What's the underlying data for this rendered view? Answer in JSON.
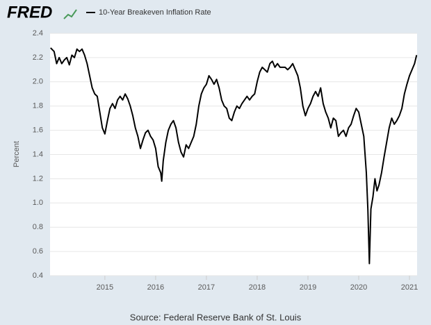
{
  "chart_data": {
    "type": "line",
    "logo": "FRED",
    "title": "10-Year Breakeven Inflation Rate",
    "y_label": "Percent",
    "source": "Source: Federal Reserve Bank of St. Louis",
    "grid": true,
    "xlim": [
      2013.92,
      2021.15
    ],
    "xticks": [
      2015,
      2016,
      2017,
      2018,
      2019,
      2020,
      2021
    ],
    "ylim": [
      0.4,
      2.4
    ],
    "yticks": [
      0.4,
      0.6,
      0.8,
      {
        "value": 1,
        "label": "1.0"
      },
      1.2,
      1.4,
      1.6,
      1.8,
      {
        "value": 2,
        "label": "2.0"
      },
      2.2,
      2.4
    ],
    "x": [
      2013.93,
      2014.0,
      2014.05,
      2014.1,
      2014.15,
      2014.2,
      2014.25,
      2014.3,
      2014.35,
      2014.4,
      2014.45,
      2014.5,
      2014.55,
      2014.6,
      2014.65,
      2014.7,
      2014.75,
      2014.8,
      2014.85,
      2014.9,
      2014.95,
      2015.0,
      2015.05,
      2015.1,
      2015.15,
      2015.2,
      2015.25,
      2015.3,
      2015.35,
      2015.4,
      2015.45,
      2015.5,
      2015.55,
      2015.6,
      2015.65,
      2015.7,
      2015.75,
      2015.8,
      2015.85,
      2015.9,
      2015.95,
      2016.0,
      2016.05,
      2016.1,
      2016.12,
      2016.15,
      2016.2,
      2016.25,
      2016.3,
      2016.35,
      2016.4,
      2016.45,
      2016.5,
      2016.55,
      2016.6,
      2016.65,
      2016.7,
      2016.75,
      2016.8,
      2016.85,
      2016.9,
      2016.95,
      2017.0,
      2017.05,
      2017.1,
      2017.15,
      2017.2,
      2017.25,
      2017.3,
      2017.35,
      2017.4,
      2017.45,
      2017.5,
      2017.55,
      2017.6,
      2017.65,
      2017.7,
      2017.75,
      2017.8,
      2017.85,
      2017.9,
      2017.95,
      2018.0,
      2018.05,
      2018.1,
      2018.15,
      2018.2,
      2018.25,
      2018.3,
      2018.35,
      2018.4,
      2018.45,
      2018.5,
      2018.55,
      2018.6,
      2018.65,
      2018.7,
      2018.75,
      2018.8,
      2018.85,
      2018.9,
      2018.95,
      2019.0,
      2019.05,
      2019.1,
      2019.15,
      2019.2,
      2019.25,
      2019.3,
      2019.35,
      2019.4,
      2019.45,
      2019.5,
      2019.55,
      2019.6,
      2019.65,
      2019.7,
      2019.75,
      2019.8,
      2019.85,
      2019.9,
      2019.95,
      2020.0,
      2020.05,
      2020.1,
      2020.15,
      2020.18,
      2020.21,
      2020.24,
      2020.28,
      2020.32,
      2020.36,
      2020.4,
      2020.45,
      2020.5,
      2020.55,
      2020.6,
      2020.65,
      2020.7,
      2020.75,
      2020.8,
      2020.85,
      2020.9,
      2020.95,
      2021.0,
      2021.05,
      2021.1,
      2021.14
    ],
    "series": [
      {
        "name": "10-Year Breakeven Inflation Rate",
        "color": "#000000",
        "values": [
          2.28,
          2.25,
          2.15,
          2.2,
          2.15,
          2.18,
          2.2,
          2.14,
          2.22,
          2.2,
          2.27,
          2.25,
          2.27,
          2.22,
          2.15,
          2.05,
          1.95,
          1.9,
          1.88,
          1.75,
          1.62,
          1.57,
          1.68,
          1.78,
          1.82,
          1.78,
          1.85,
          1.88,
          1.85,
          1.9,
          1.86,
          1.8,
          1.72,
          1.62,
          1.55,
          1.45,
          1.52,
          1.58,
          1.6,
          1.55,
          1.52,
          1.45,
          1.3,
          1.25,
          1.18,
          1.35,
          1.5,
          1.6,
          1.65,
          1.68,
          1.62,
          1.5,
          1.42,
          1.38,
          1.48,
          1.45,
          1.5,
          1.55,
          1.65,
          1.8,
          1.9,
          1.95,
          1.98,
          2.05,
          2.02,
          1.98,
          2.02,
          1.95,
          1.85,
          1.8,
          1.78,
          1.7,
          1.68,
          1.75,
          1.8,
          1.78,
          1.82,
          1.85,
          1.88,
          1.85,
          1.88,
          1.9,
          2.0,
          2.08,
          2.12,
          2.1,
          2.08,
          2.15,
          2.17,
          2.12,
          2.15,
          2.12,
          2.12,
          2.12,
          2.1,
          2.12,
          2.15,
          2.1,
          2.05,
          1.95,
          1.8,
          1.72,
          1.78,
          1.82,
          1.88,
          1.92,
          1.88,
          1.95,
          1.82,
          1.75,
          1.7,
          1.62,
          1.7,
          1.68,
          1.55,
          1.58,
          1.6,
          1.55,
          1.62,
          1.65,
          1.72,
          1.78,
          1.75,
          1.65,
          1.55,
          1.25,
          0.95,
          0.5,
          0.95,
          1.05,
          1.2,
          1.1,
          1.15,
          1.25,
          1.38,
          1.5,
          1.62,
          1.7,
          1.65,
          1.68,
          1.72,
          1.78,
          1.9,
          1.98,
          2.05,
          2.1,
          2.15,
          2.22
        ]
      }
    ]
  }
}
